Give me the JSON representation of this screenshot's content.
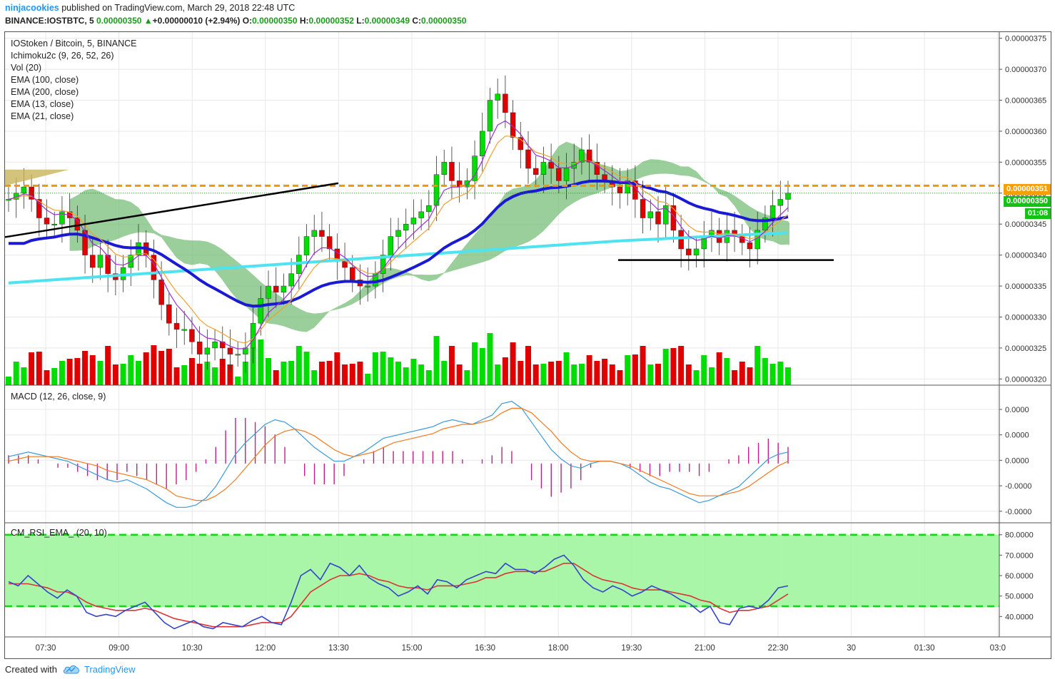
{
  "header": {
    "author": "ninjacookies",
    "published": "published on TradingView.com, March 29, 2018 22:48 UTC",
    "symbol": "BINANCE:IOSTBTC, 5",
    "last": "0.00000350",
    "change_arrow": "▲",
    "change": "+0.00000010 (+2.94%)",
    "o_label": "O:",
    "o": "0.00000350",
    "h_label": "H:",
    "h": "0.00000352",
    "l_label": "L:",
    "l": "0.00000349",
    "c_label": "C:",
    "c": "0.00000350"
  },
  "legend": {
    "title": "IOStoken / Bitcoin, 5, BINANCE",
    "items": [
      "Ichimoku2c (9, 26, 52, 26)",
      "Vol (20)",
      "EMA (100, close)",
      "EMA (200, close)",
      "EMA (13, close)",
      "EMA (21, close)"
    ],
    "macd": "MACD (12, 26, close, 9)",
    "rsi": "CM_RSI_EMA_ (20, 10)"
  },
  "price_tags": {
    "resistance": "0.00000351",
    "current": "0.00000350",
    "countdown": "01:08"
  },
  "footer": {
    "created_with": "Created with",
    "brand": "TradingView",
    "logo_icon": "tradingview-cloud-icon"
  },
  "colors": {
    "up": "#00dd00",
    "down": "#e00000",
    "ema100": "#1a1ad4",
    "ema200": "#4de3f0",
    "ema13": "#9b30d0",
    "ema21": "#f0a030",
    "cloud": "#6fb96f",
    "resistance": "#f0960a",
    "macd": "#3a9ad9",
    "signal": "#f07a20",
    "hist": "#c0208a",
    "rsi": "#3344cc",
    "rsi_ema": "#dd3333",
    "rsi_band": "#80f080"
  },
  "chart_data": [
    {
      "type": "candlestick",
      "title": "IOStoken / Bitcoin, 5, BINANCE",
      "x_ticks": [
        "07:30",
        "09:00",
        "10:30",
        "12:00",
        "13:30",
        "15:00",
        "16:30",
        "18:00",
        "19:30",
        "21:00",
        "22:30",
        "30",
        "01:30",
        "03:0"
      ],
      "y_ticks": [
        "0.00000375",
        "0.00000370",
        "0.00000365",
        "0.00000360",
        "0.00000355",
        "0.00000350",
        "0.00000345",
        "0.00000340",
        "0.00000335",
        "0.00000330",
        "0.00000325",
        "0.00000320"
      ],
      "ylim": [
        3.19e-06,
        3.76e-06
      ],
      "close_series": [
        3.49e-06,
        3.5e-06,
        3.51e-06,
        3.49e-06,
        3.46e-06,
        3.45e-06,
        3.45e-06,
        3.47e-06,
        3.46e-06,
        3.44e-06,
        3.4e-06,
        3.38e-06,
        3.4e-06,
        3.37e-06,
        3.36e-06,
        3.38e-06,
        3.4e-06,
        3.42e-06,
        3.4e-06,
        3.36e-06,
        3.32e-06,
        3.29e-06,
        3.28e-06,
        3.28e-06,
        3.26e-06,
        3.24e-06,
        3.25e-06,
        3.26e-06,
        3.25e-06,
        3.24e-06,
        3.24e-06,
        3.25e-06,
        3.29e-06,
        3.33e-06,
        3.35e-06,
        3.34e-06,
        3.35e-06,
        3.37e-06,
        3.4e-06,
        3.43e-06,
        3.44e-06,
        3.43e-06,
        3.41e-06,
        3.39e-06,
        3.38e-06,
        3.36e-06,
        3.35e-06,
        3.35e-06,
        3.37e-06,
        3.4e-06,
        3.43e-06,
        3.44e-06,
        3.45e-06,
        3.46e-06,
        3.47e-06,
        3.48e-06,
        3.53e-06,
        3.55e-06,
        3.52e-06,
        3.51e-06,
        3.52e-06,
        3.56e-06,
        3.6e-06,
        3.65e-06,
        3.66e-06,
        3.63e-06,
        3.59e-06,
        3.57e-06,
        3.54e-06,
        3.53e-06,
        3.55e-06,
        3.54e-06,
        3.52e-06,
        3.54e-06,
        3.55e-06,
        3.57e-06,
        3.55e-06,
        3.53e-06,
        3.52e-06,
        3.51e-06,
        3.5e-06,
        3.52e-06,
        3.49e-06,
        3.46e-06,
        3.47e-06,
        3.45e-06,
        3.48e-06,
        3.44e-06,
        3.41e-06,
        3.4e-06,
        3.41e-06,
        3.43e-06,
        3.44e-06,
        3.42e-06,
        3.44e-06,
        3.43e-06,
        3.42e-06,
        3.41e-06,
        3.44e-06,
        3.46e-06,
        3.48e-06,
        3.49e-06,
        3.5e-06
      ],
      "annotations": [
        "resistance 0.00000351",
        "support 0.00000339",
        "trendline"
      ]
    },
    {
      "type": "line",
      "title": "MACD (12, 26, close, 9)",
      "y_ticks": [
        "0.0000",
        "0.0000",
        "0.0000",
        "-0.0000",
        "-0.0000"
      ],
      "series": [
        {
          "name": "MACD",
          "values": [
            0.3,
            0.4,
            0.5,
            0.4,
            0.3,
            0.2,
            0.1,
            -0.1,
            -0.3,
            -0.5,
            -0.7,
            -0.8,
            -0.7,
            -0.9,
            -1.1,
            -1.4,
            -1.7,
            -1.9,
            -1.9,
            -1.8,
            -1.5,
            -1.0,
            -0.3,
            0.4,
            0.9,
            1.3,
            1.7,
            1.9,
            1.8,
            1.5,
            1.1,
            0.7,
            0.4,
            0.1,
            0.1,
            0.3,
            0.5,
            0.8,
            1.1,
            1.2,
            1.3,
            1.4,
            1.5,
            1.6,
            1.8,
            1.9,
            1.8,
            1.7,
            1.9,
            2.1,
            2.6,
            2.7,
            2.4,
            1.8,
            1.2,
            0.6,
            0.2,
            -0.1,
            -0.2,
            0.0,
            0.1,
            0.1,
            0.0,
            -0.2,
            -0.5,
            -0.8,
            -1.0,
            -1.1,
            -1.3,
            -1.5,
            -1.7,
            -1.6,
            -1.4,
            -1.2,
            -1.0,
            -0.6,
            -0.2,
            0.2,
            0.4,
            0.5
          ]
        },
        {
          "name": "Signal",
          "values": [
            0.1,
            0.2,
            0.3,
            0.3,
            0.3,
            0.3,
            0.2,
            0.1,
            0.0,
            -0.1,
            -0.3,
            -0.4,
            -0.5,
            -0.6,
            -0.7,
            -0.9,
            -1.1,
            -1.4,
            -1.5,
            -1.6,
            -1.6,
            -1.4,
            -1.1,
            -0.7,
            -0.2,
            0.3,
            0.8,
            1.2,
            1.4,
            1.5,
            1.4,
            1.2,
            0.9,
            0.6,
            0.4,
            0.3,
            0.4,
            0.5,
            0.7,
            0.9,
            1.0,
            1.1,
            1.2,
            1.3,
            1.5,
            1.6,
            1.7,
            1.7,
            1.8,
            1.9,
            2.2,
            2.4,
            2.4,
            2.2,
            1.8,
            1.4,
            0.9,
            0.5,
            0.2,
            0.1,
            0.1,
            0.1,
            0.0,
            -0.1,
            -0.3,
            -0.5,
            -0.7,
            -0.9,
            -1.1,
            -1.3,
            -1.4,
            -1.4,
            -1.4,
            -1.3,
            -1.2,
            -1.0,
            -0.7,
            -0.4,
            -0.1,
            0.1
          ]
        }
      ]
    },
    {
      "type": "line",
      "title": "CM_RSI_EMA_ (20, 10)",
      "y_ticks": [
        "80.0000",
        "70.0000",
        "60.0000",
        "50.0000",
        "40.0000"
      ],
      "bands": [
        80,
        45
      ],
      "series": [
        {
          "name": "RSI",
          "values": [
            57,
            55,
            60,
            56,
            52,
            49,
            53,
            50,
            42,
            40,
            41,
            40,
            43,
            45,
            47,
            42,
            37,
            34,
            36,
            38,
            35,
            34,
            37,
            36,
            35,
            38,
            40,
            37,
            36,
            47,
            60,
            63,
            58,
            66,
            64,
            60,
            65,
            59,
            56,
            54,
            50,
            52,
            55,
            51,
            58,
            57,
            54,
            58,
            60,
            62,
            61,
            66,
            63,
            63,
            61,
            64,
            68,
            70,
            65,
            58,
            54,
            52,
            55,
            53,
            50,
            52,
            55,
            53,
            51,
            48,
            46,
            42,
            45,
            37,
            36,
            44,
            45,
            44,
            48,
            54,
            55
          ]
        },
        {
          "name": "RSI EMA",
          "values": [
            56,
            56,
            56,
            55,
            54,
            52,
            52,
            50,
            47,
            45,
            44,
            43,
            43,
            43,
            44,
            43,
            41,
            39,
            38,
            37,
            36,
            35,
            35,
            35,
            35,
            36,
            37,
            37,
            37,
            40,
            46,
            52,
            55,
            58,
            60,
            60,
            61,
            60,
            58,
            57,
            55,
            54,
            54,
            53,
            55,
            55,
            55,
            56,
            57,
            59,
            59,
            61,
            62,
            62,
            62,
            62,
            64,
            66,
            66,
            63,
            60,
            58,
            57,
            56,
            54,
            53,
            53,
            53,
            52,
            51,
            50,
            48,
            47,
            44,
            42,
            43,
            43,
            44,
            45,
            48,
            51
          ]
        }
      ]
    }
  ]
}
